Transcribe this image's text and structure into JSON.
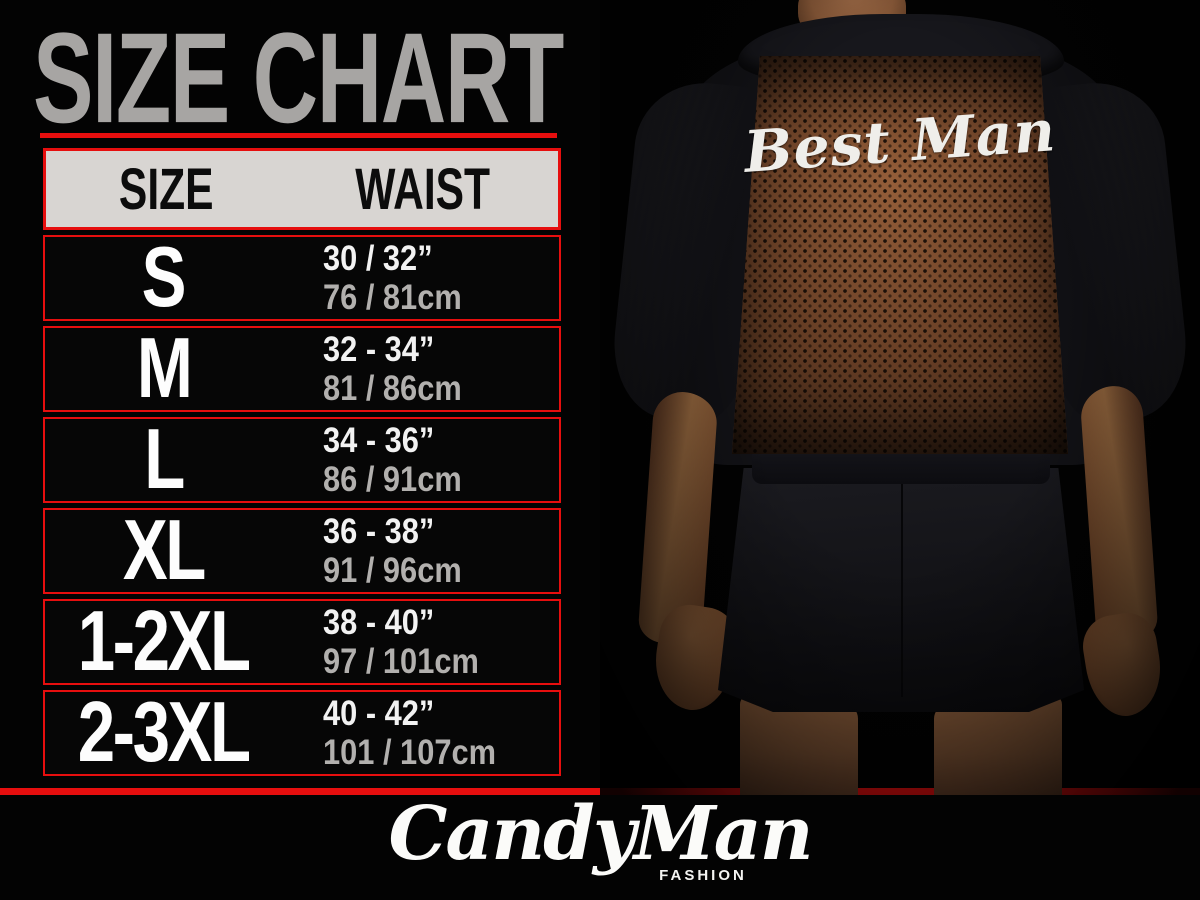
{
  "page": {
    "title": "SIZE CHART"
  },
  "table": {
    "headers": [
      "SIZE",
      "WAIST"
    ],
    "rows": [
      {
        "size": "S",
        "inches": "30 / 32”",
        "cm": "76 / 81cm"
      },
      {
        "size": "M",
        "inches": "32 - 34”",
        "cm": "81 / 86cm"
      },
      {
        "size": "L",
        "inches": "34 - 36”",
        "cm": "86 / 91cm"
      },
      {
        "size": "XL",
        "inches": "36 - 38”",
        "cm": "91 / 96cm"
      },
      {
        "size": "1-2XL",
        "inches": "38 - 40”",
        "cm": "97 / 101cm"
      },
      {
        "size": "2-3XL",
        "inches": "40 - 42”",
        "cm": "101 / 107cm"
      }
    ]
  },
  "photo": {
    "print_text": "Best Man"
  },
  "brand": {
    "name": "CandyMan",
    "sub": "FASHION"
  },
  "colors": {
    "accent_red": "#e60e0e",
    "title_gray": "#a7a5a3",
    "header_bg": "#d8d5d2",
    "inches_white": "#f2f2f2",
    "cm_gray": "#b2b0ae",
    "mesh_brown": "#6e4328"
  },
  "chart_data": {
    "type": "table",
    "title": "SIZE CHART",
    "columns": [
      "SIZE",
      "WAIST"
    ],
    "rows": [
      [
        "S",
        "30 / 32” — 76 / 81cm"
      ],
      [
        "M",
        "32 - 34” — 81 / 86cm"
      ],
      [
        "L",
        "34 - 36” — 86 / 91cm"
      ],
      [
        "XL",
        "36 - 38” — 91 / 96cm"
      ],
      [
        "1-2XL",
        "38 - 40” — 97 / 101cm"
      ],
      [
        "2-3XL",
        "40 - 42” — 101 / 107cm"
      ]
    ]
  }
}
